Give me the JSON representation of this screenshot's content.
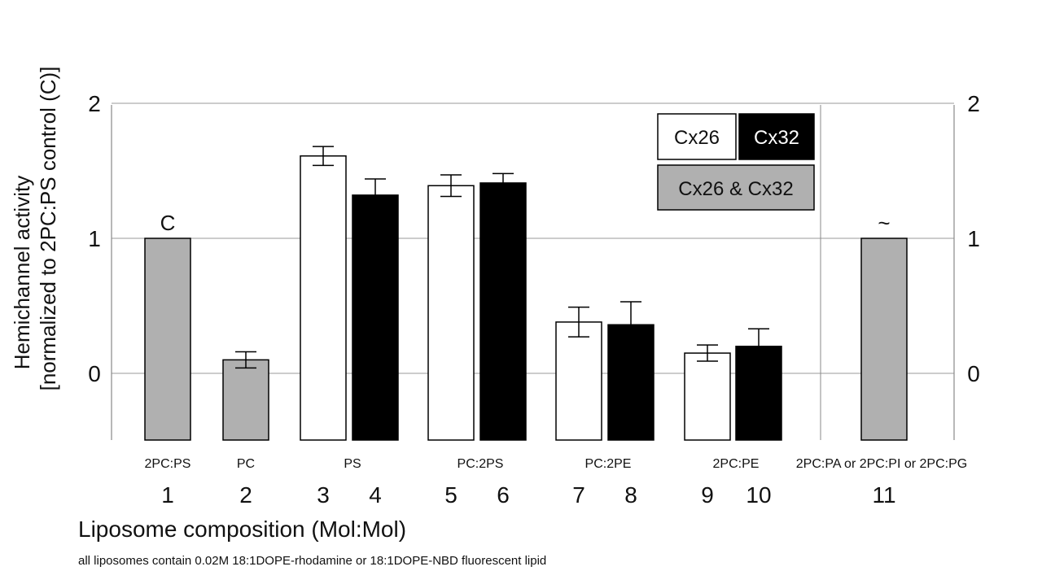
{
  "chart_data": {
    "type": "bar",
    "title": "",
    "ylabel_line1": "Hemichannel activity",
    "ylabel_line2": "[normalized to 2PC:PS control (C)]",
    "xlabel": "Liposome composition (Mol:Mol)",
    "footnote": "all liposomes contain 0.02M 18:1DOPE-rhodamine or 18:1DOPE-NBD fluorescent lipid",
    "ylim": [
      -0.5,
      2
    ],
    "yticks": [
      "0",
      "1",
      "2"
    ],
    "grid": true,
    "legend": [
      {
        "label": "Cx26",
        "color": "#ffffff",
        "text_color": "#111111"
      },
      {
        "label": "Cx32",
        "color": "#000000",
        "text_color": "#ffffff"
      },
      {
        "label": "Cx26 & Cx32",
        "color": "#b0b0b0",
        "text_color": "#111111"
      }
    ],
    "legend_position": "top-right",
    "group_labels": [
      "2PC:PS",
      "PC",
      "PS",
      "PC:2PS",
      "PC:2PE",
      "2PC:PE",
      "2PC:PA or 2PC:PI or 2PC:PG"
    ],
    "bars": [
      {
        "number": "1",
        "series": "Cx26 & Cx32",
        "value": 1.0,
        "error": null,
        "annotation": "C"
      },
      {
        "number": "2",
        "series": "Cx26 & Cx32",
        "value": 0.1,
        "error": 0.06,
        "annotation": ""
      },
      {
        "number": "3",
        "series": "Cx26",
        "value": 1.61,
        "error": 0.07,
        "annotation": ""
      },
      {
        "number": "4",
        "series": "Cx32",
        "value": 1.32,
        "error": 0.12,
        "annotation": ""
      },
      {
        "number": "5",
        "series": "Cx26",
        "value": 1.39,
        "error": 0.08,
        "annotation": ""
      },
      {
        "number": "6",
        "series": "Cx32",
        "value": 1.41,
        "error": 0.07,
        "annotation": ""
      },
      {
        "number": "7",
        "series": "Cx26",
        "value": 0.38,
        "error": 0.11,
        "annotation": ""
      },
      {
        "number": "8",
        "series": "Cx32",
        "value": 0.36,
        "error": 0.17,
        "annotation": ""
      },
      {
        "number": "9",
        "series": "Cx26",
        "value": 0.15,
        "error": 0.06,
        "annotation": ""
      },
      {
        "number": "10",
        "series": "Cx32",
        "value": 0.2,
        "error": 0.13,
        "annotation": ""
      },
      {
        "number": "11",
        "series": "Cx26 & Cx32",
        "value": 1.0,
        "error": null,
        "annotation": "~"
      }
    ],
    "colors": {
      "Cx26": "#ffffff",
      "Cx32": "#000000",
      "Cx26 & Cx32": "#b0b0b0",
      "grid": "#9a9a9a",
      "axis": "#888888"
    }
  }
}
